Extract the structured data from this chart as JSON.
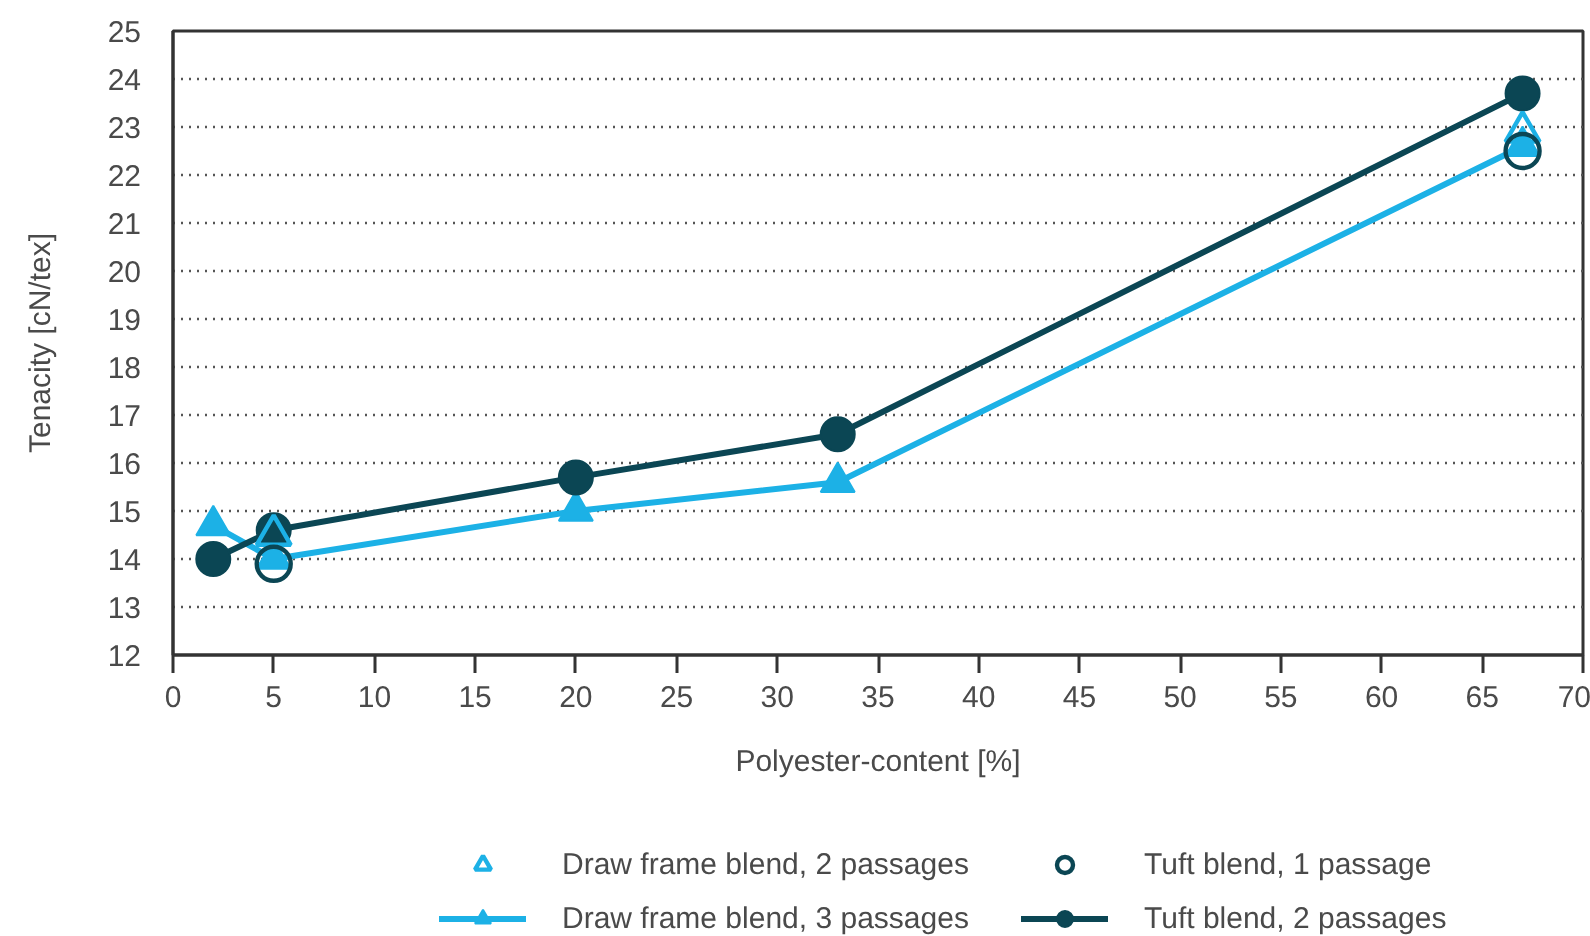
{
  "chart_data": {
    "type": "line",
    "xlabel": "Polyester-content [%]",
    "ylabel": "Tenacity [cN/tex]",
    "xlim": [
      0,
      70
    ],
    "ylim": [
      12,
      25
    ],
    "xticks": [
      0,
      5,
      10,
      15,
      20,
      25,
      30,
      35,
      40,
      45,
      50,
      55,
      60,
      65,
      70
    ],
    "yticks": [
      12,
      13,
      14,
      15,
      16,
      17,
      18,
      19,
      20,
      21,
      22,
      23,
      24,
      25
    ],
    "grid": "y",
    "legend": "bottom",
    "series": [
      {
        "name": "Draw frame blend, 2 passages",
        "type": "scatter",
        "marker": "triangle",
        "color": "#1cb1e6",
        "x": [
          5,
          67
        ],
        "values": [
          14.5,
          22.9
        ]
      },
      {
        "name": "Draw frame blend, 3 passages",
        "marker": "triangle",
        "color": "#1cb1e6",
        "x": [
          2,
          5,
          20,
          33,
          67
        ],
        "values": [
          14.7,
          14.0,
          15.0,
          15.6,
          22.6
        ]
      },
      {
        "name": "Tuft blend, 1 passage",
        "type": "scatter",
        "marker": "circle",
        "color": "#0b4654",
        "x": [
          5,
          67
        ],
        "values": [
          13.9,
          22.5
        ]
      },
      {
        "name": "Tuft blend, 2 passages",
        "marker": "circle",
        "color": "#0b4654",
        "x": [
          2,
          5,
          20,
          33,
          67
        ],
        "values": [
          14.0,
          14.6,
          15.7,
          16.6,
          23.7
        ]
      }
    ]
  }
}
